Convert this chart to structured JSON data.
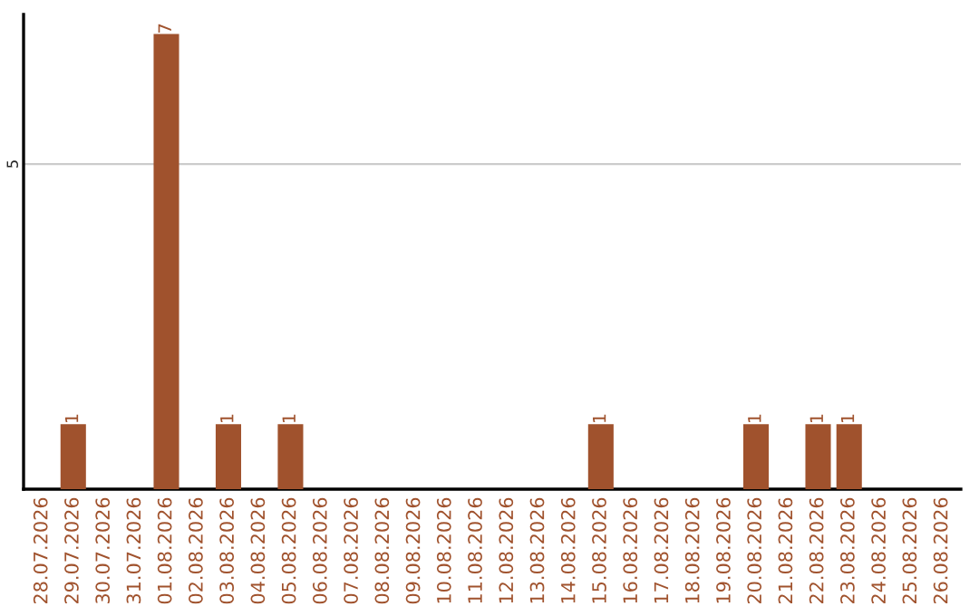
{
  "chart_data": {
    "type": "bar",
    "categories": [
      "28.07.2026",
      "29.07.2026",
      "30.07.2026",
      "31.07.2026",
      "01.08.2026",
      "02.08.2026",
      "03.08.2026",
      "04.08.2026",
      "05.08.2026",
      "06.08.2026",
      "07.08.2026",
      "08.08.2026",
      "09.08.2026",
      "10.08.2026",
      "11.08.2026",
      "12.08.2026",
      "13.08.2026",
      "14.08.2026",
      "15.08.2026",
      "16.08.2026",
      "17.08.2026",
      "18.08.2026",
      "19.08.2026",
      "20.08.2026",
      "21.08.2026",
      "22.08.2026",
      "23.08.2026",
      "24.08.2026",
      "25.08.2026",
      "26.08.2026"
    ],
    "values": [
      0,
      1,
      0,
      0,
      7,
      0,
      1,
      0,
      1,
      0,
      0,
      0,
      0,
      0,
      0,
      0,
      0,
      0,
      1,
      0,
      0,
      0,
      0,
      1,
      0,
      1,
      1,
      0,
      0,
      0
    ],
    "value_labels": [
      null,
      "1",
      null,
      null,
      "7",
      null,
      "1",
      null,
      "1",
      null,
      null,
      null,
      null,
      null,
      null,
      null,
      null,
      null,
      "1",
      null,
      null,
      null,
      null,
      "1",
      null,
      "1",
      "1",
      null,
      null,
      null
    ],
    "color": "#a0522d",
    "ylim": [
      0,
      7.3
    ],
    "yticks": [
      5
    ],
    "grid": "y",
    "legend": false
  }
}
